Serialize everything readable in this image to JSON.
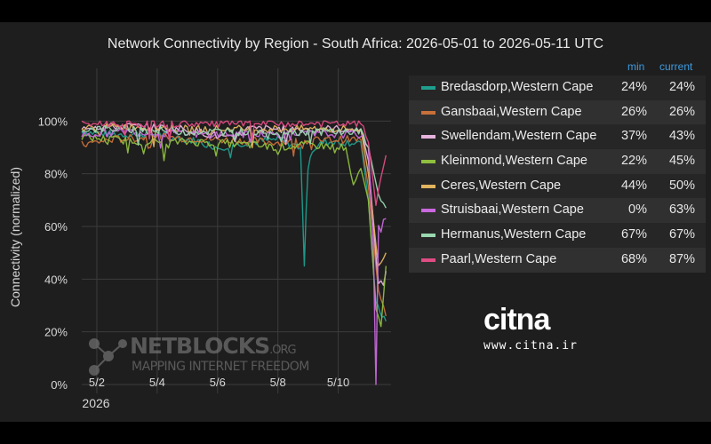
{
  "chart_data": {
    "type": "line",
    "title": "Network Connectivity by Region - South Africa: 2026-05-01 to 2026-05-11 UTC",
    "ylabel": "Connectivity (normalized)",
    "xlabel": "",
    "x_ticks": [
      "5/2",
      "5/4",
      "5/6",
      "5/8",
      "5/10"
    ],
    "x_year_label": "2026",
    "x_range": [
      "2026-05-01T12:00",
      "2026-05-11T18:00"
    ],
    "ylim": [
      0,
      1.2
    ],
    "y_ticks": [
      "0%",
      "20%",
      "40%",
      "60%",
      "80%",
      "100%"
    ],
    "grid": true,
    "legend_position": "right",
    "legend_header": {
      "min": "min",
      "current": "current"
    },
    "series": [
      {
        "name": "Bredasdorp,Western Cape",
        "color": "#1f9e8e",
        "min": "24%",
        "current": "24%",
        "points": [
          [
            "2026-05-01T12:00",
            0.96
          ],
          [
            "2026-05-02T12:00",
            0.95
          ],
          [
            "2026-05-04T00:00",
            0.95
          ],
          [
            "2026-05-05T12:00",
            0.92
          ],
          [
            "2026-05-06T00:00",
            0.9
          ],
          [
            "2026-05-07T00:00",
            0.92
          ],
          [
            "2026-05-08T00:00",
            0.93
          ],
          [
            "2026-05-08T18:00",
            0.9
          ],
          [
            "2026-05-08T21:00",
            0.45
          ],
          [
            "2026-05-09T00:00",
            0.88
          ],
          [
            "2026-05-09T12:00",
            0.92
          ],
          [
            "2026-05-10T00:00",
            0.92
          ],
          [
            "2026-05-10T18:00",
            0.92
          ],
          [
            "2026-05-11T00:00",
            0.7
          ],
          [
            "2026-05-11T06:00",
            0.3
          ],
          [
            "2026-05-11T14:00",
            0.24
          ]
        ]
      },
      {
        "name": "Gansbaai,Western Cape",
        "color": "#c8703a",
        "min": "26%",
        "current": "26%",
        "points": [
          [
            "2026-05-01T12:00",
            0.91
          ],
          [
            "2026-05-02T12:00",
            0.93
          ],
          [
            "2026-05-04T00:00",
            0.94
          ],
          [
            "2026-05-06T00:00",
            0.93
          ],
          [
            "2026-05-08T00:00",
            0.92
          ],
          [
            "2026-05-10T00:00",
            0.93
          ],
          [
            "2026-05-10T18:00",
            0.93
          ],
          [
            "2026-05-11T00:00",
            0.75
          ],
          [
            "2026-05-11T08:00",
            0.35
          ],
          [
            "2026-05-11T14:00",
            0.26
          ]
        ]
      },
      {
        "name": "Swellendam,Western Cape",
        "color": "#e7b3de",
        "min": "37%",
        "current": "43%",
        "points": [
          [
            "2026-05-01T12:00",
            0.98
          ],
          [
            "2026-05-03T00:00",
            0.98
          ],
          [
            "2026-05-05T00:00",
            0.97
          ],
          [
            "2026-05-06T12:00",
            0.93
          ],
          [
            "2026-05-07T00:00",
            0.97
          ],
          [
            "2026-05-09T00:00",
            0.97
          ],
          [
            "2026-05-10T18:00",
            0.97
          ],
          [
            "2026-05-11T00:00",
            0.85
          ],
          [
            "2026-05-11T08:00",
            0.37
          ],
          [
            "2026-05-11T14:00",
            0.43
          ]
        ]
      },
      {
        "name": "Kleinmond,Western Cape",
        "color": "#8fbf3f",
        "min": "22%",
        "current": "45%",
        "points": [
          [
            "2026-05-01T12:00",
            0.94
          ],
          [
            "2026-05-02T12:00",
            0.93
          ],
          [
            "2026-05-04T00:00",
            0.92
          ],
          [
            "2026-05-05T12:00",
            0.92
          ],
          [
            "2026-05-07T00:00",
            0.91
          ],
          [
            "2026-05-08T00:00",
            0.9
          ],
          [
            "2026-05-09T00:00",
            0.91
          ],
          [
            "2026-05-10T06:00",
            0.9
          ],
          [
            "2026-05-10T12:00",
            0.75
          ],
          [
            "2026-05-10T18:00",
            0.82
          ],
          [
            "2026-05-11T00:00",
            0.7
          ],
          [
            "2026-05-11T06:00",
            0.3
          ],
          [
            "2026-05-11T10:00",
            0.22
          ],
          [
            "2026-05-11T14:00",
            0.45
          ]
        ]
      },
      {
        "name": "Ceres,Western Cape",
        "color": "#e1b45e",
        "min": "44%",
        "current": "50%",
        "points": [
          [
            "2026-05-01T12:00",
            0.97
          ],
          [
            "2026-05-03T00:00",
            0.98
          ],
          [
            "2026-05-05T00:00",
            0.97
          ],
          [
            "2026-05-07T00:00",
            0.97
          ],
          [
            "2026-05-09T00:00",
            0.97
          ],
          [
            "2026-05-10T18:00",
            0.97
          ],
          [
            "2026-05-11T00:00",
            0.8
          ],
          [
            "2026-05-11T08:00",
            0.44
          ],
          [
            "2026-05-11T14:00",
            0.5
          ]
        ]
      },
      {
        "name": "Struisbaai,Western Cape",
        "color": "#c969dd",
        "min": "0%",
        "current": "63%",
        "points": [
          [
            "2026-05-01T12:00",
            0.95
          ],
          [
            "2026-05-03T00:00",
            0.96
          ],
          [
            "2026-05-05T00:00",
            0.95
          ],
          [
            "2026-05-07T00:00",
            0.95
          ],
          [
            "2026-05-09T00:00",
            0.95
          ],
          [
            "2026-05-10T18:00",
            0.95
          ],
          [
            "2026-05-11T00:00",
            0.9
          ],
          [
            "2026-05-11T04:00",
            0.5
          ],
          [
            "2026-05-11T06:00",
            0.0
          ],
          [
            "2026-05-11T08:00",
            0.6
          ],
          [
            "2026-05-11T14:00",
            0.63
          ]
        ]
      },
      {
        "name": "Hermanus,Western Cape",
        "color": "#9ad7b0",
        "min": "67%",
        "current": "67%",
        "points": [
          [
            "2026-05-01T12:00",
            0.97
          ],
          [
            "2026-05-03T00:00",
            0.97
          ],
          [
            "2026-05-05T00:00",
            0.96
          ],
          [
            "2026-05-07T00:00",
            0.96
          ],
          [
            "2026-05-09T00:00",
            0.96
          ],
          [
            "2026-05-10T18:00",
            0.96
          ],
          [
            "2026-05-11T00:00",
            0.9
          ],
          [
            "2026-05-11T08:00",
            0.72
          ],
          [
            "2026-05-11T14:00",
            0.67
          ]
        ]
      },
      {
        "name": "Paarl,Western Cape",
        "color": "#e04c84",
        "min": "68%",
        "current": "87%",
        "points": [
          [
            "2026-05-01T12:00",
            0.99
          ],
          [
            "2026-05-03T00:00",
            0.99
          ],
          [
            "2026-05-05T00:00",
            0.99
          ],
          [
            "2026-05-07T00:00",
            0.99
          ],
          [
            "2026-05-09T00:00",
            0.99
          ],
          [
            "2026-05-10T18:00",
            0.99
          ],
          [
            "2026-05-11T00:00",
            0.92
          ],
          [
            "2026-05-11T06:00",
            0.68
          ],
          [
            "2026-05-11T10:00",
            0.8
          ],
          [
            "2026-05-11T14:00",
            0.87
          ]
        ]
      }
    ]
  },
  "watermarks": {
    "netblocks_name": "NETBLOCKS",
    "netblocks_org": ".ORG",
    "netblocks_tagline": "MAPPING INTERNET FREEDOM",
    "citna_logo": "citna",
    "citna_url": "www.citna.ir"
  }
}
